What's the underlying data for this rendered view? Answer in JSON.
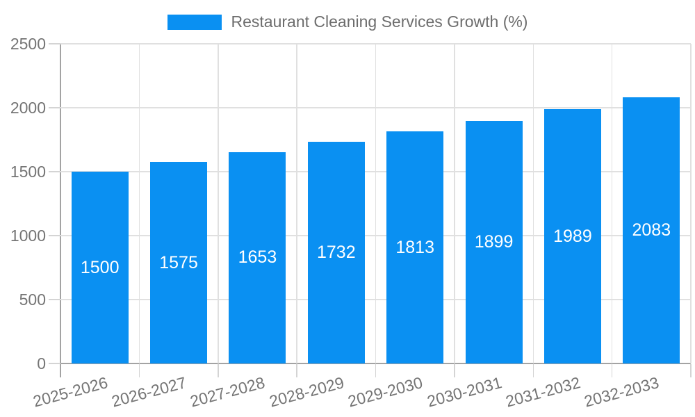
{
  "legend": {
    "label": "Restaurant Cleaning Services Growth (%)"
  },
  "chart_data": {
    "type": "bar",
    "title": "",
    "categories": [
      "2025-2026",
      "2026-2027",
      "2027-2028",
      "2028-2029",
      "2029-2030",
      "2030-2031",
      "2031-2032",
      "2032-2033"
    ],
    "series": [
      {
        "name": "Restaurant Cleaning Services Growth (%)",
        "values": [
          1500,
          1575,
          1653,
          1732,
          1813,
          1899,
          1989,
          2083
        ]
      }
    ],
    "value_labels": [
      "1500",
      "1575",
      "1653",
      "1732",
      "1813",
      "1899",
      "1989",
      "2083"
    ],
    "xlabel": "",
    "ylabel": "",
    "ylim": [
      0,
      2500
    ],
    "yticks": [
      0,
      500,
      1000,
      1500,
      2000,
      2500
    ],
    "grid": true,
    "legend_position": "top",
    "x_tick_rotation_deg": -15
  },
  "colors": {
    "bar": "#0a90f2",
    "bar_value_text": "#ffffff",
    "grid": "#e0e0e0",
    "axis": "#a3a3a3",
    "tick_label": "#757575",
    "legend_text": "#6d6d6d",
    "background": "#ffffff"
  }
}
